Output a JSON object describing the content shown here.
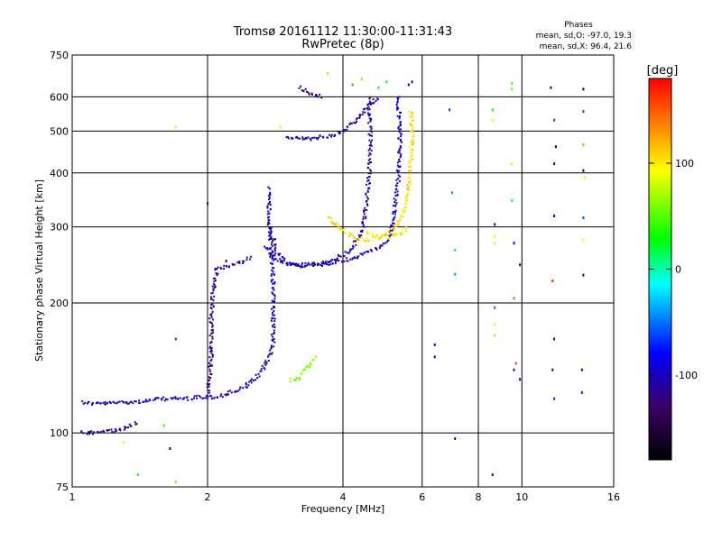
{
  "chart_data": {
    "type": "scatter",
    "title": "Tromsø 20161112 11:30:00-11:31:43",
    "subtitle": "RwPretec (8p)",
    "xlabel": "Frequency [MHz]",
    "ylabel": "Stationary phase Virtual Height [km]",
    "xscale": "log",
    "yscale": "log",
    "xlim": [
      1,
      16
    ],
    "ylim": [
      75,
      750
    ],
    "xticks": [
      1,
      2,
      4,
      6,
      8,
      10,
      16
    ],
    "xtick_labels": [
      "1",
      "2",
      "4",
      "6",
      "8",
      "10",
      "16"
    ],
    "yticks": [
      75,
      100,
      200,
      300,
      400,
      500,
      600,
      750
    ],
    "ytick_labels": [
      "75",
      "100",
      "200",
      "300",
      "400",
      "500",
      "600",
      "750"
    ],
    "grid": true,
    "legend": {
      "heading": "Phases",
      "line1": "mean, sd,O:  -97.0,  19.3",
      "line2": "mean, sd,X:   96.4,  21.6",
      "placement": "top-right"
    },
    "colorbar": {
      "label": "[deg]",
      "range": [
        -180,
        180
      ],
      "ticks": [
        100,
        0,
        -100
      ],
      "tick_labels": [
        "100",
        "0",
        "-100"
      ],
      "colormap": [
        "#000000",
        "#3a0066",
        "#0000ff",
        "#00ffff",
        "#00ff00",
        "#ffff00",
        "#ff8000",
        "#ff0000"
      ]
    },
    "series": [
      {
        "kind": "trace",
        "phase": -105,
        "x": [
          1.05,
          1.1,
          1.2,
          1.3,
          1.4,
          1.5,
          1.6,
          1.7,
          1.8,
          1.9,
          2.0,
          2.1,
          2.2,
          2.3,
          2.4,
          2.5,
          2.6,
          2.7,
          2.8
        ],
        "y": [
          118,
          117,
          117,
          118,
          118,
          119,
          120,
          120,
          120,
          121,
          121,
          121,
          123,
          125,
          127,
          131,
          136,
          145,
          160
        ]
      },
      {
        "kind": "trace",
        "phase": -100,
        "x": [
          2.8,
          2.8,
          2.8,
          2.78,
          2.76,
          2.74,
          2.74,
          2.75
        ],
        "y": [
          160,
          190,
          220,
          250,
          280,
          310,
          340,
          370
        ]
      },
      {
        "kind": "trace",
        "phase": -115,
        "x": [
          1.05,
          1.1,
          1.2,
          1.3,
          1.4
        ],
        "y": [
          100,
          100,
          101,
          102,
          106
        ]
      },
      {
        "kind": "trace",
        "phase": -120,
        "x": [
          2.0,
          2.02,
          2.04,
          2.04,
          2.04,
          2.06,
          2.1,
          2.2,
          2.3,
          2.4,
          2.5
        ],
        "y": [
          125,
          135,
          150,
          165,
          190,
          215,
          240,
          242,
          245,
          250,
          255
        ]
      },
      {
        "kind": "trace",
        "phase": -110,
        "x": [
          2.75,
          2.85,
          3.0,
          3.2,
          3.4,
          3.6,
          3.8,
          4.0,
          4.2,
          4.4,
          4.5,
          4.55,
          4.6,
          4.6,
          4.58,
          4.6
        ],
        "y": [
          300,
          262,
          247,
          244,
          245,
          247,
          252,
          258,
          268,
          290,
          330,
          380,
          430,
          480,
          530,
          600
        ]
      },
      {
        "kind": "trace",
        "phase": -98,
        "x": [
          2.7,
          2.8,
          3.0,
          3.3,
          3.6,
          4.0,
          4.4,
          4.8,
          5.1,
          5.2,
          5.3,
          5.35,
          5.35,
          5.3
        ],
        "y": [
          270,
          255,
          246,
          245,
          246,
          250,
          258,
          268,
          285,
          320,
          380,
          450,
          520,
          610
        ]
      },
      {
        "kind": "trace",
        "phase": -110,
        "x": [
          3.0,
          3.2,
          3.4,
          3.6,
          3.8,
          4.0,
          4.2,
          4.4,
          4.6,
          4.8
        ],
        "y": [
          485,
          480,
          480,
          485,
          490,
          500,
          520,
          550,
          580,
          600
        ]
      },
      {
        "kind": "trace",
        "phase": -115,
        "x": [
          3.2,
          3.3,
          3.4,
          3.5,
          3.6
        ],
        "y": [
          630,
          620,
          610,
          605,
          600
        ]
      },
      {
        "kind": "trace",
        "phase": 105,
        "x": [
          3.7,
          3.9,
          4.1,
          4.3,
          4.5,
          4.7,
          4.9,
          5.1,
          5.3,
          5.5,
          5.6,
          5.65,
          5.7,
          5.7,
          5.65
        ],
        "y": [
          315,
          300,
          290,
          282,
          280,
          282,
          286,
          293,
          305,
          330,
          370,
          420,
          470,
          520,
          560
        ]
      },
      {
        "kind": "trace",
        "phase": 95,
        "x": [
          4.5,
          4.8,
          5.1,
          5.4,
          5.6
        ],
        "y": [
          290,
          285,
          285,
          290,
          300
        ]
      },
      {
        "kind": "trace",
        "phase": 60,
        "x": [
          3.05,
          3.1,
          3.15,
          3.2,
          3.3,
          3.35,
          3.4,
          3.45,
          3.5
        ],
        "y": [
          133,
          132,
          133,
          134,
          140,
          142,
          145,
          148,
          152
        ]
      }
    ],
    "scatter_points": [
      {
        "x": 1.7,
        "y": 510,
        "phase": 100
      },
      {
        "x": 2.9,
        "y": 510,
        "phase": 100
      },
      {
        "x": 3.7,
        "y": 680,
        "phase": 110
      },
      {
        "x": 4.4,
        "y": 660,
        "phase": 120
      },
      {
        "x": 4.2,
        "y": 640,
        "phase": 150
      },
      {
        "x": 4.8,
        "y": 630,
        "phase": 20
      },
      {
        "x": 5.0,
        "y": 650,
        "phase": 30
      },
      {
        "x": 5.6,
        "y": 640,
        "phase": -120
      },
      {
        "x": 5.7,
        "y": 650,
        "phase": -110
      },
      {
        "x": 6.4,
        "y": 160,
        "phase": -110
      },
      {
        "x": 6.4,
        "y": 150,
        "phase": -90
      },
      {
        "x": 6.9,
        "y": 560,
        "phase": -60
      },
      {
        "x": 7.0,
        "y": 360,
        "phase": -40
      },
      {
        "x": 7.1,
        "y": 265,
        "phase": 20
      },
      {
        "x": 7.1,
        "y": 233,
        "phase": -40
      },
      {
        "x": 7.1,
        "y": 97,
        "phase": -90
      },
      {
        "x": 8.6,
        "y": 560,
        "phase": 25
      },
      {
        "x": 8.6,
        "y": 530,
        "phase": 100
      },
      {
        "x": 8.7,
        "y": 304,
        "phase": -100
      },
      {
        "x": 8.7,
        "y": 285,
        "phase": 90
      },
      {
        "x": 8.7,
        "y": 275,
        "phase": 80
      },
      {
        "x": 8.7,
        "y": 195,
        "phase": -50
      },
      {
        "x": 8.7,
        "y": 178,
        "phase": 100
      },
      {
        "x": 8.7,
        "y": 168,
        "phase": 110
      },
      {
        "x": 8.6,
        "y": 80,
        "phase": -120
      },
      {
        "x": 9.5,
        "y": 645,
        "phase": 40
      },
      {
        "x": 9.5,
        "y": 625,
        "phase": 60
      },
      {
        "x": 9.5,
        "y": 420,
        "phase": 100
      },
      {
        "x": 9.5,
        "y": 345,
        "phase": 20
      },
      {
        "x": 9.6,
        "y": 275,
        "phase": -80
      },
      {
        "x": 9.6,
        "y": 205,
        "phase": 150
      },
      {
        "x": 9.7,
        "y": 145,
        "phase": 160
      },
      {
        "x": 9.6,
        "y": 140,
        "phase": -120
      },
      {
        "x": 9.9,
        "y": 245,
        "phase": -130
      },
      {
        "x": 9.9,
        "y": 133,
        "phase": -110
      },
      {
        "x": 11.6,
        "y": 630,
        "phase": -130
      },
      {
        "x": 11.8,
        "y": 530,
        "phase": -60
      },
      {
        "x": 11.9,
        "y": 460,
        "phase": -140
      },
      {
        "x": 11.8,
        "y": 420,
        "phase": -110
      },
      {
        "x": 11.8,
        "y": 318,
        "phase": -80
      },
      {
        "x": 11.7,
        "y": 225,
        "phase": 170
      },
      {
        "x": 11.8,
        "y": 165,
        "phase": -100
      },
      {
        "x": 11.7,
        "y": 140,
        "phase": -110
      },
      {
        "x": 11.8,
        "y": 120,
        "phase": -70
      },
      {
        "x": 13.7,
        "y": 625,
        "phase": -150
      },
      {
        "x": 13.7,
        "y": 555,
        "phase": -60
      },
      {
        "x": 13.7,
        "y": 465,
        "phase": 130
      },
      {
        "x": 13.7,
        "y": 405,
        "phase": -110
      },
      {
        "x": 13.8,
        "y": 390,
        "phase": 100
      },
      {
        "x": 13.7,
        "y": 315,
        "phase": -60
      },
      {
        "x": 13.7,
        "y": 280,
        "phase": 90
      },
      {
        "x": 13.7,
        "y": 232,
        "phase": -140
      },
      {
        "x": 13.6,
        "y": 140,
        "phase": -100
      },
      {
        "x": 13.6,
        "y": 124,
        "phase": -70
      },
      {
        "x": 1.3,
        "y": 95,
        "phase": 100
      },
      {
        "x": 1.4,
        "y": 80,
        "phase": 30
      },
      {
        "x": 1.6,
        "y": 104,
        "phase": 40
      },
      {
        "x": 1.65,
        "y": 92,
        "phase": -140
      },
      {
        "x": 1.7,
        "y": 77,
        "phase": 120
      },
      {
        "x": 1.7,
        "y": 165,
        "phase": -60
      },
      {
        "x": 2.0,
        "y": 340,
        "phase": -100
      },
      {
        "x": 2.2,
        "y": 250,
        "phase": -120
      }
    ]
  }
}
